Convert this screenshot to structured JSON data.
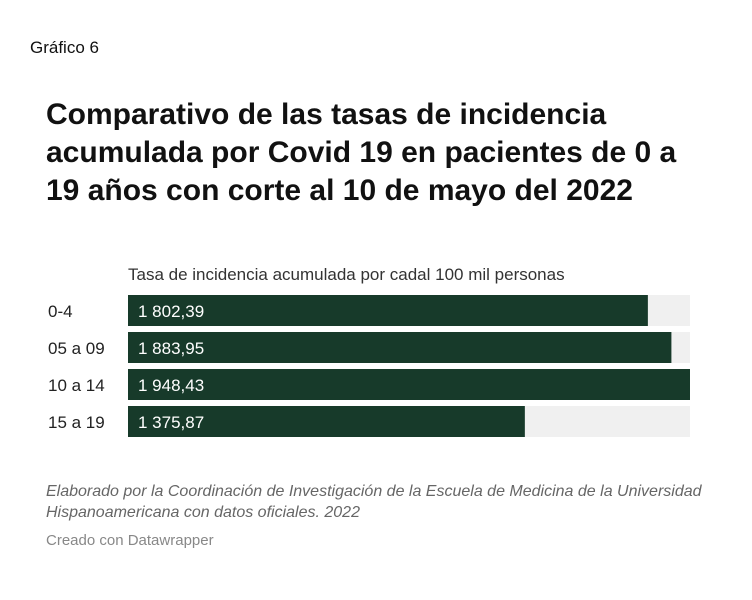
{
  "header": {
    "figure_label": "Gráfico 6"
  },
  "chart_data": {
    "type": "bar",
    "orientation": "horizontal",
    "title": "Comparativo de las tasas de incidencia acumulada por Covid 19 en pacientes de 0 a 19 años con corte al 10 de mayo del 2022",
    "subtitle": "Tasa de incidencia acumulada por cadal 100 mil personas",
    "categories": [
      "0-4",
      "05 a 09",
      "10 a 14",
      "15 a 19"
    ],
    "values": [
      1802.39,
      1883.95,
      1948.43,
      1375.87
    ],
    "value_labels": [
      "1 802,39",
      "1 883,95",
      "1 948,43",
      "1 375,87"
    ],
    "xlim": [
      0,
      1948.43
    ],
    "bar_color": "#173a2a",
    "track_color": "#f0f0f0"
  },
  "footer": {
    "source": "Elaborado por la Coordinación de Investigación de la Escuela de Medicina de la Universidad Hispanoamericana con datos oficiales. 2022",
    "credit": "Creado con Datawrapper"
  }
}
